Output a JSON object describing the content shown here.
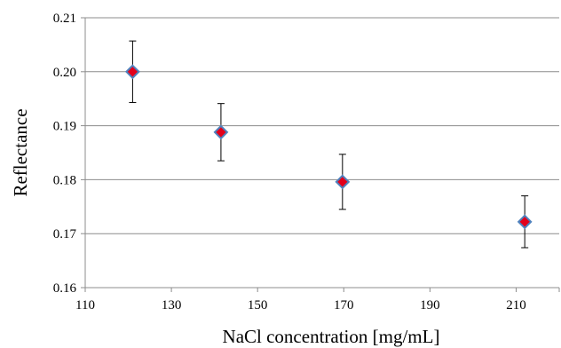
{
  "chart_data": {
    "type": "scatter",
    "title": "",
    "xlabel": "NaCl concentration  [mg/mL]",
    "ylabel": "Reflectance",
    "xlim": [
      110,
      220
    ],
    "ylim": [
      0.16,
      0.21
    ],
    "x_ticks": [
      110,
      130,
      150,
      170,
      190,
      210
    ],
    "y_ticks": [
      0.16,
      0.17,
      0.18,
      0.19,
      0.2,
      0.21
    ],
    "x_tick_labels": [
      "110",
      "130",
      "150",
      "170",
      "190",
      "210"
    ],
    "y_tick_labels": [
      "0.16",
      "0.17",
      "0.18",
      "0.19",
      "0.20",
      "0.21"
    ],
    "grid": "horizontal",
    "legend": "none",
    "marker": "diamond",
    "marker_fill": "#e3001b",
    "marker_edge": "#4f81bd",
    "series": [
      {
        "x": [
          121,
          141.5,
          169.7,
          212
        ],
        "y": [
          0.2,
          0.1888,
          0.1796,
          0.1722
        ],
        "error": [
          0.0057,
          0.0053,
          0.0051,
          0.0048
        ]
      }
    ]
  }
}
